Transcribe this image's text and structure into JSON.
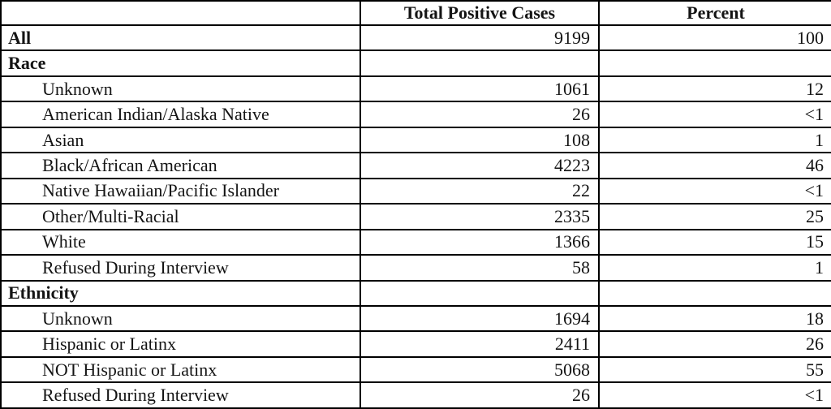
{
  "colors": {
    "background": "#ffffff",
    "text": "#141414",
    "border": "#000000"
  },
  "table": {
    "columns": [
      "",
      "Total Positive Cases",
      "Percent"
    ],
    "rows": [
      {
        "label": "All",
        "bold": true,
        "indent": false,
        "cases": "9199",
        "percent": "100"
      },
      {
        "label": "Race",
        "bold": true,
        "indent": false,
        "cases": "",
        "percent": ""
      },
      {
        "label": "Unknown",
        "bold": false,
        "indent": true,
        "cases": "1061",
        "percent": "12"
      },
      {
        "label": "American Indian/Alaska Native",
        "bold": false,
        "indent": true,
        "cases": "26",
        "percent": "<1"
      },
      {
        "label": "Asian",
        "bold": false,
        "indent": true,
        "cases": "108",
        "percent": "1"
      },
      {
        "label": "Black/African American",
        "bold": false,
        "indent": true,
        "cases": "4223",
        "percent": "46"
      },
      {
        "label": "Native Hawaiian/Pacific Islander",
        "bold": false,
        "indent": true,
        "cases": "22",
        "percent": "<1"
      },
      {
        "label": "Other/Multi-Racial",
        "bold": false,
        "indent": true,
        "cases": "2335",
        "percent": "25"
      },
      {
        "label": "White",
        "bold": false,
        "indent": true,
        "cases": "1366",
        "percent": "15"
      },
      {
        "label": "Refused During Interview",
        "bold": false,
        "indent": true,
        "cases": "58",
        "percent": "1"
      },
      {
        "label": "Ethnicity",
        "bold": true,
        "indent": false,
        "cases": "",
        "percent": ""
      },
      {
        "label": "Unknown",
        "bold": false,
        "indent": true,
        "cases": "1694",
        "percent": "18"
      },
      {
        "label": "Hispanic or Latinx",
        "bold": false,
        "indent": true,
        "cases": "2411",
        "percent": "26"
      },
      {
        "label": "NOT Hispanic or Latinx",
        "bold": false,
        "indent": true,
        "cases": "5068",
        "percent": "55"
      },
      {
        "label": "Refused During Interview",
        "bold": false,
        "indent": true,
        "cases": "26",
        "percent": "<1"
      }
    ]
  }
}
